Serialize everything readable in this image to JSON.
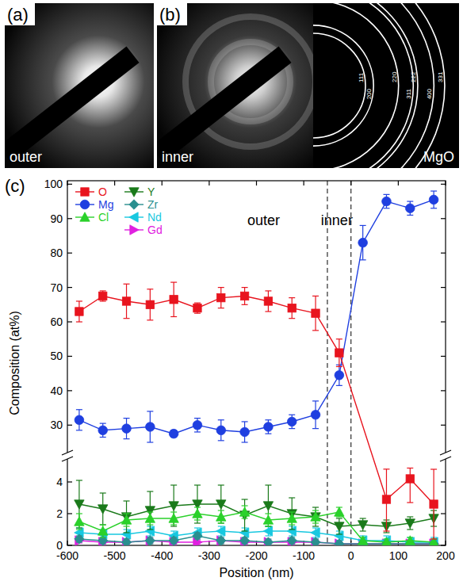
{
  "images": [
    {
      "letter": "(a)",
      "label": "outer"
    },
    {
      "letter": "(b)",
      "label": "inner",
      "reference": {
        "label": "MgO",
        "rings": [
          "111",
          "200",
          "220",
          "311",
          "222",
          "400",
          "331"
        ]
      }
    }
  ],
  "chart_data": {
    "letter": "(c)",
    "type": "line",
    "x_label": "Position (nm)",
    "y_label": "Composition (at%)",
    "xlim": [
      -600,
      200
    ],
    "xticks": [
      -600,
      -500,
      -400,
      -300,
      -200,
      -100,
      0,
      100,
      200
    ],
    "ylim": [
      0,
      101
    ],
    "y_break": [
      4.8,
      25
    ],
    "yticks": [
      0,
      2,
      4,
      30,
      40,
      50,
      60,
      70,
      80,
      90,
      100
    ],
    "grid": false,
    "legend": "upper left",
    "boundaries": [
      -50,
      0
    ],
    "annotations": [
      {
        "text": "outer",
        "x": -185,
        "y": 88
      },
      {
        "text": "inner",
        "x": -30,
        "y": 88
      }
    ],
    "x": [
      -575,
      -525,
      -475,
      -425,
      -375,
      -325,
      -275,
      -225,
      -175,
      -125,
      -75,
      -25,
      25,
      75,
      125,
      175
    ],
    "series": [
      {
        "name": "O",
        "color": "#e8141e",
        "marker": "square",
        "x": [
          -575,
          -525,
          -475,
          -425,
          -375,
          -325,
          -275,
          -225,
          -175,
          -125,
          -75,
          -25,
          75,
          125,
          175
        ],
        "values": [
          63,
          67.5,
          66,
          65,
          66.5,
          64,
          67,
          67.5,
          66,
          64,
          62.5,
          51,
          2.9,
          4.2,
          2.6
        ],
        "errors": [
          3,
          1.5,
          5,
          4.5,
          5,
          1.5,
          3,
          2.5,
          3,
          3,
          5,
          4,
          2,
          1.5,
          2.2
        ]
      },
      {
        "name": "Mg",
        "color": "#1f3fe0",
        "marker": "circle",
        "values": [
          31.5,
          28.5,
          29,
          29.5,
          27.5,
          30,
          28.5,
          28,
          29.5,
          31,
          33,
          44.5,
          83,
          95,
          93,
          95.5
        ],
        "errors": [
          3,
          2,
          3,
          4.5,
          1,
          2,
          3,
          3,
          2,
          2,
          4,
          3,
          5,
          2,
          2,
          2.5
        ]
      },
      {
        "name": "Cl",
        "color": "#2ad12a",
        "marker": "triangle-up",
        "values": [
          1.5,
          0.9,
          1.6,
          1.7,
          1.7,
          2.0,
          1.8,
          2.1,
          1.6,
          1.7,
          1.8,
          2.1,
          0.3,
          0.2,
          0.3,
          0.2
        ],
        "errors": [
          0.5,
          0.4,
          0.4,
          0.4,
          0.4,
          0.4,
          0.4,
          0.4,
          0.4,
          0.4,
          0.4,
          0.3,
          0.2,
          0.2,
          0.2,
          0.2
        ]
      },
      {
        "name": "Y",
        "color": "#1a7a1a",
        "marker": "triangle-down",
        "values": [
          2.6,
          2.3,
          1.8,
          2.2,
          2.5,
          2.6,
          2.6,
          1.9,
          2.5,
          2.0,
          1.8,
          1.2,
          1.3,
          1.2,
          1.4,
          1.7
        ],
        "errors": [
          1.5,
          1,
          1,
          1.2,
          1.3,
          1.2,
          1.2,
          1,
          1.3,
          1,
          0.6,
          0.5,
          0.4,
          0.4,
          0.4,
          0.5
        ]
      },
      {
        "name": "Zr",
        "color": "#2a8f8f",
        "marker": "diamond",
        "values": [
          0.4,
          0.3,
          0.2,
          0.3,
          0.3,
          0.6,
          0.3,
          0.3,
          0.2,
          0.3,
          0.2,
          0.1,
          0.1,
          0.1,
          0.1,
          0.1
        ],
        "errors": [
          0.2,
          0.2,
          0.2,
          0.2,
          0.2,
          0.2,
          0.2,
          0.2,
          0.2,
          0.2,
          0.2,
          0.2,
          0.2,
          0.2,
          0.2,
          0.2
        ]
      },
      {
        "name": "Nd",
        "color": "#18c8e0",
        "marker": "triangle-left",
        "values": [
          0.8,
          0.7,
          0.7,
          0.9,
          0.6,
          0.8,
          0.9,
          0.8,
          0.9,
          0.9,
          0.8,
          0.6,
          0.3,
          0.3,
          0.2,
          0.2
        ],
        "errors": [
          0.3,
          0.3,
          0.3,
          0.3,
          0.3,
          0.3,
          0.3,
          0.3,
          0.3,
          0.3,
          0.3,
          0.3,
          0.3,
          0.3,
          0.3,
          0.3
        ]
      },
      {
        "name": "Gd",
        "color": "#e020e0",
        "marker": "triangle-right",
        "values": [
          0.3,
          0.2,
          0.2,
          0.3,
          0.2,
          0.2,
          0.3,
          0.2,
          0.2,
          0.2,
          0.2,
          0.1,
          0.1,
          0.1,
          0.1,
          0.1
        ],
        "errors": [
          0.15,
          0.15,
          0.15,
          0.15,
          0.15,
          0.15,
          0.15,
          0.15,
          0.15,
          0.15,
          0.15,
          0.15,
          0.15,
          0.15,
          0.15,
          0.15
        ]
      }
    ]
  }
}
